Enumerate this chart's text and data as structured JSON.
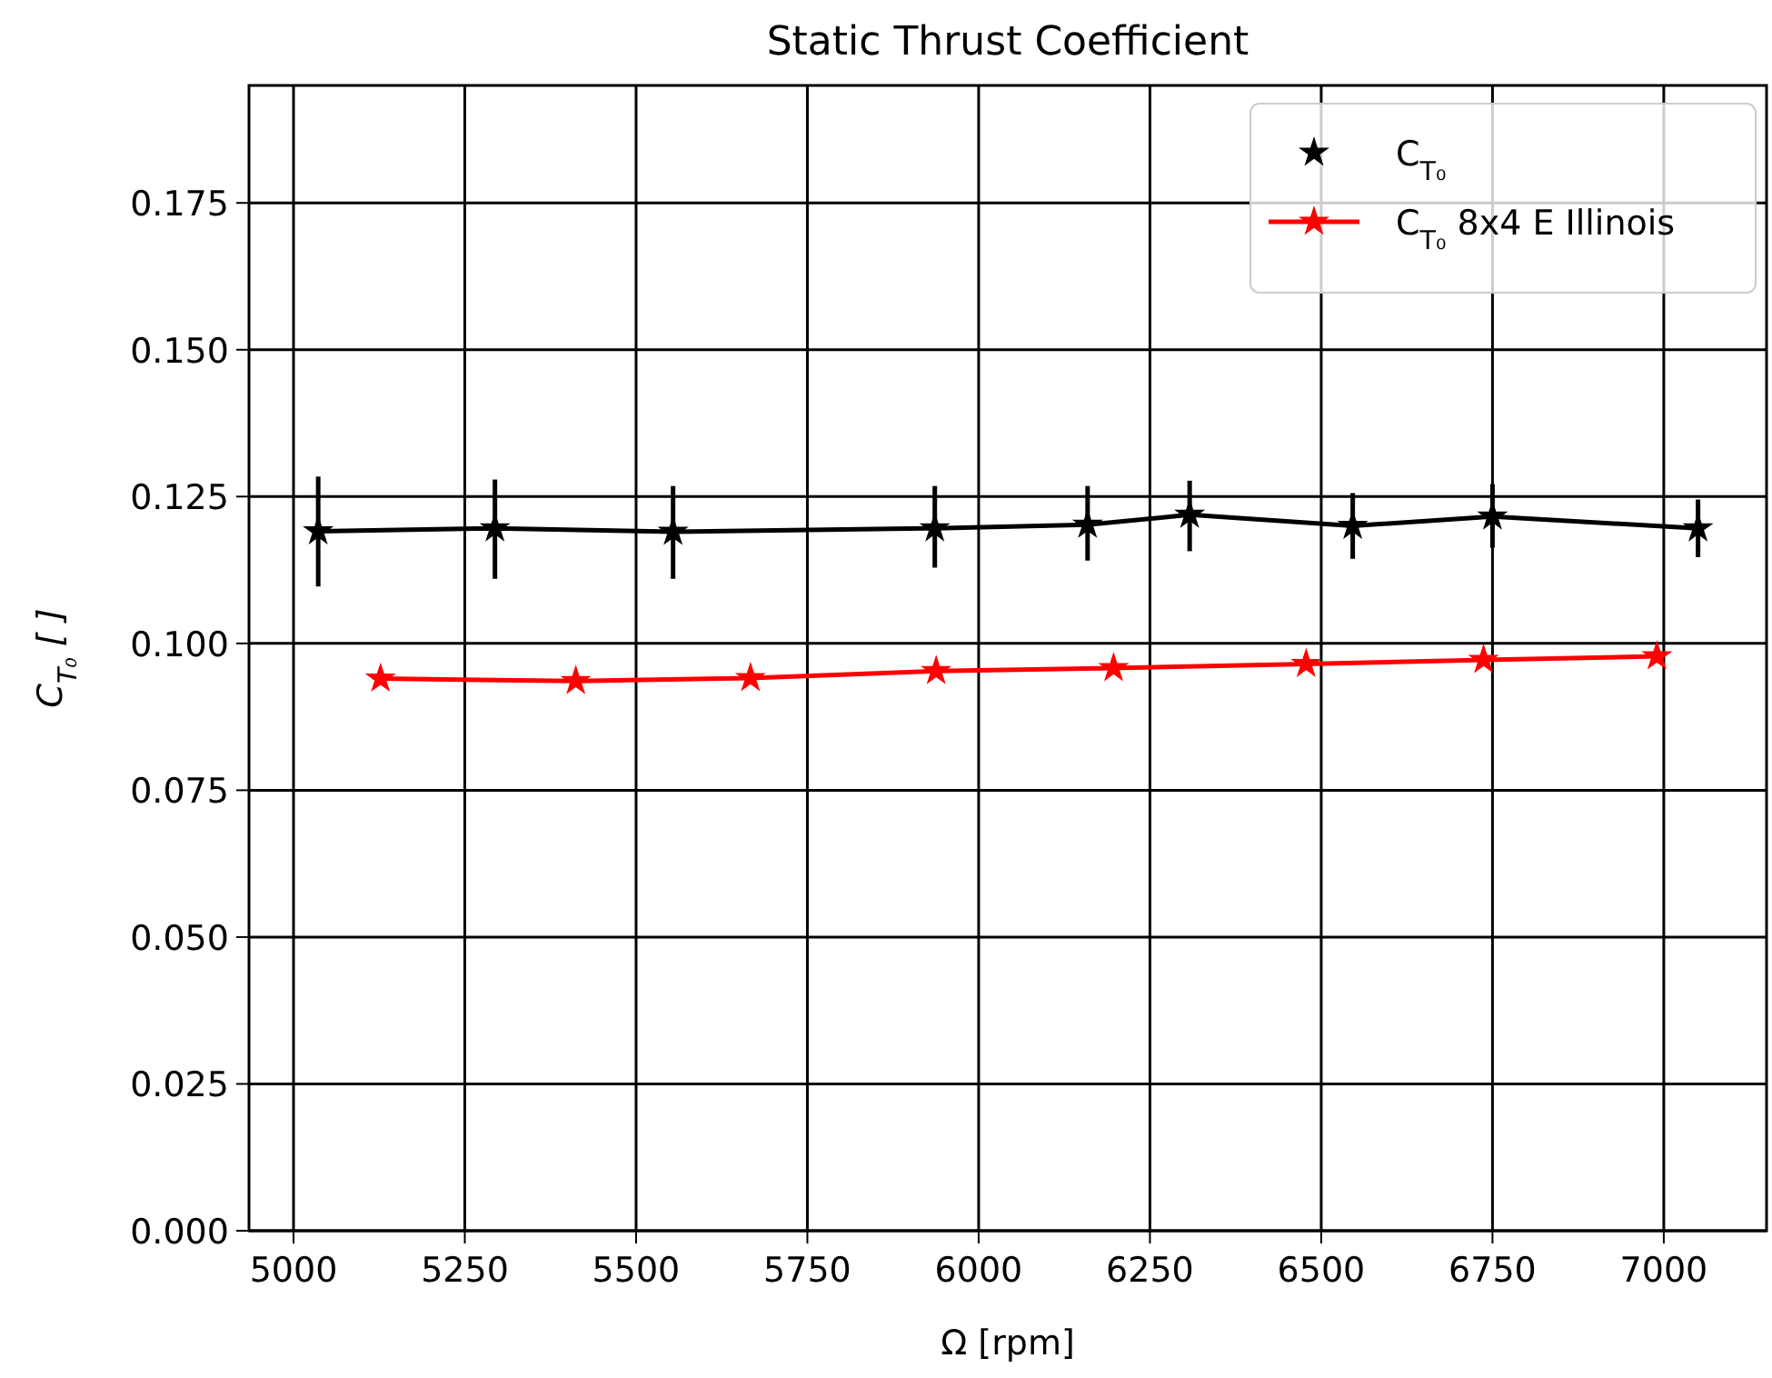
{
  "chart_data": {
    "type": "line",
    "title": "Static Thrust Coefficient",
    "xlabel": "Ω [rpm]",
    "ylabel": "C$_{T₀}$ [ ]",
    "xlim": [
      4935,
      7150
    ],
    "xticks": [
      5000,
      5250,
      5500,
      5750,
      6000,
      6250,
      6500,
      6750,
      7000
    ],
    "ylim": [
      0,
      0.195
    ],
    "yticks": [
      {
        "value": 0,
        "label": "0.000"
      },
      {
        "value": 0.025,
        "label": "0.025"
      },
      {
        "value": 0.05,
        "label": "0.050"
      },
      {
        "value": 0.075,
        "label": "0.075"
      },
      {
        "value": 0.1,
        "label": "0.100"
      },
      {
        "value": 0.125,
        "label": "0.125"
      },
      {
        "value": 0.15,
        "label": "0.150"
      },
      {
        "value": 0.175,
        "label": "0.175"
      }
    ],
    "grid": true,
    "legend": "top right",
    "marker": "star",
    "line_style": "solid",
    "series": [
      {
        "name": "C$_{T₀}$",
        "color": "#000000",
        "x": [
          5036,
          5294,
          5554,
          5936,
          6159,
          6308,
          6546,
          6750,
          7050
        ],
        "values": [
          0.1191,
          0.1196,
          0.119,
          0.1196,
          0.1202,
          0.1219,
          0.12,
          0.1216,
          0.1196
        ],
        "errors": [
          [
            0.1097,
            0.1284
          ],
          [
            0.111,
            0.1279
          ],
          [
            0.111,
            0.1268
          ],
          [
            0.1129,
            0.1268
          ],
          [
            0.1141,
            0.1268
          ],
          [
            0.1157,
            0.1277
          ],
          [
            0.1144,
            0.1256
          ],
          [
            0.1163,
            0.1271
          ],
          [
            0.1147,
            0.1245
          ]
        ]
      },
      {
        "name": "C$_{T₀}$ 8x4 E Illinois",
        "color": "#ff0000",
        "x": [
          5127,
          5412,
          5667,
          5938,
          6197,
          6478,
          6737,
          6990
        ],
        "values": [
          0.094,
          0.0936,
          0.0941,
          0.0953,
          0.0958,
          0.0965,
          0.0972,
          0.0978
        ]
      }
    ]
  }
}
